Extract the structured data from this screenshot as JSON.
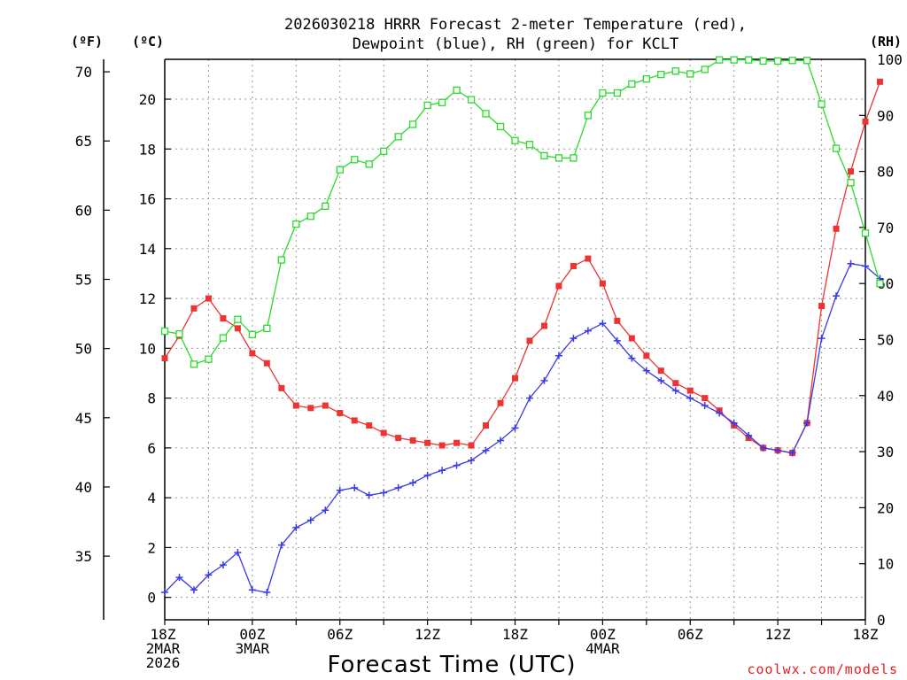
{
  "chart_data": {
    "type": "line",
    "title_lines": [
      "2026030218 HRRR Forecast 2-meter Temperature (red),",
      "Dewpoint (blue), RH (green) for KCLT"
    ],
    "xlabel": "Forecast Time (UTC)",
    "credit": "coolwx.com/models",
    "unit_labels": {
      "fahrenheit": "(ºF)",
      "celsius": "(ºC)",
      "rh": "(RH)"
    },
    "x_range_hours": [
      0,
      48
    ],
    "x_ticks": [
      {
        "hour": 0,
        "labels": [
          "18Z",
          "2MAR",
          "2026"
        ]
      },
      {
        "hour": 6,
        "labels": [
          "00Z",
          "3MAR"
        ]
      },
      {
        "hour": 12,
        "labels": [
          "06Z"
        ]
      },
      {
        "hour": 18,
        "labels": [
          "12Z"
        ]
      },
      {
        "hour": 24,
        "labels": [
          "18Z"
        ]
      },
      {
        "hour": 30,
        "labels": [
          "00Z",
          "4MAR"
        ]
      },
      {
        "hour": 36,
        "labels": [
          "06Z"
        ]
      },
      {
        "hour": 42,
        "labels": [
          "12Z"
        ]
      },
      {
        "hour": 48,
        "labels": [
          "18Z"
        ]
      }
    ],
    "celsius_axis": {
      "range": [
        -0.9,
        21.6
      ],
      "ticks": [
        "0",
        "2",
        "4",
        "6",
        "8",
        "10",
        "12",
        "14",
        "16",
        "18",
        "20"
      ]
    },
    "fahrenheit_axis": {
      "range": [
        30.4,
        70.9
      ],
      "ticks": [
        "35",
        "40",
        "45",
        "50",
        "55",
        "60",
        "65",
        "70"
      ]
    },
    "rh_axis": {
      "range": [
        0,
        100
      ],
      "ticks": [
        "0",
        "10",
        "20",
        "30",
        "40",
        "50",
        "60",
        "70",
        "80",
        "90",
        "100"
      ]
    },
    "series": [
      {
        "name": "2-meter Temperature",
        "axis": "celsius",
        "color": "#ee3333",
        "marker": "filled-square",
        "values": [
          9.6,
          10.5,
          11.6,
          12.0,
          11.2,
          10.8,
          9.8,
          9.4,
          8.4,
          7.7,
          7.6,
          7.7,
          7.4,
          7.1,
          6.9,
          6.6,
          6.4,
          6.3,
          6.2,
          6.1,
          6.2,
          6.1,
          6.9,
          7.8,
          8.8,
          10.3,
          10.9,
          12.5,
          13.3,
          13.6,
          12.6,
          11.1,
          10.4,
          9.7,
          9.1,
          8.6,
          8.3,
          8.0,
          7.5,
          6.9,
          6.4,
          6.0,
          5.9,
          5.8,
          7.0,
          11.7,
          14.8,
          17.1,
          19.1,
          20.7
        ]
      },
      {
        "name": "Dewpoint",
        "axis": "celsius",
        "color": "#3a3ae6",
        "marker": "plus",
        "values": [
          0.2,
          0.8,
          0.3,
          0.9,
          1.3,
          1.8,
          0.3,
          0.2,
          2.1,
          2.8,
          3.1,
          3.5,
          4.3,
          4.4,
          4.1,
          4.2,
          4.4,
          4.6,
          4.9,
          5.1,
          5.3,
          5.5,
          5.9,
          6.3,
          6.8,
          8.0,
          8.7,
          9.7,
          10.4,
          10.7,
          11.0,
          10.3,
          9.6,
          9.1,
          8.7,
          8.3,
          8.0,
          7.7,
          7.4,
          7.0,
          6.5,
          6.0,
          5.9,
          5.8,
          7.0,
          10.4,
          12.1,
          13.4,
          13.3,
          12.8
        ]
      },
      {
        "name": "RH",
        "axis": "rh",
        "color": "#2adb2a",
        "marker": "open-square",
        "values": [
          51.5,
          51.0,
          45.6,
          46.5,
          50.3,
          53.6,
          50.9,
          52.0,
          64.2,
          70.6,
          72.0,
          73.8,
          80.3,
          82.1,
          81.3,
          83.6,
          86.2,
          88.4,
          91.8,
          92.3,
          94.5,
          92.8,
          90.3,
          88.0,
          85.5,
          84.8,
          82.8,
          82.4,
          82.4,
          90.0,
          94.0,
          94.0,
          95.6,
          96.5,
          97.3,
          97.9,
          97.4,
          98.2,
          99.9,
          99.9,
          99.9,
          99.7,
          99.7,
          99.8,
          99.8,
          92.0,
          84.1,
          78.0,
          69.0,
          60.0
        ]
      }
    ]
  }
}
